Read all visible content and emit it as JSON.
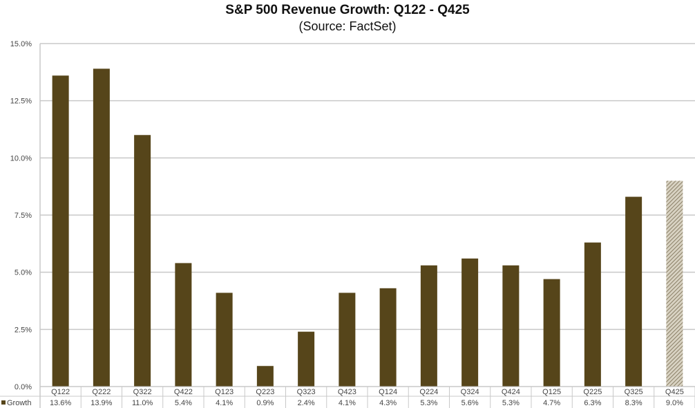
{
  "chart_data": {
    "type": "bar",
    "title": "S&P 500 Revenue Growth: Q122 - Q425",
    "subtitle": "(Source: FactSet)",
    "xlabel": "",
    "ylabel": "",
    "ylim": [
      0,
      15
    ],
    "ytick_step": 2.5,
    "yticks": [
      "0.0%",
      "2.5%",
      "5.0%",
      "7.5%",
      "10.0%",
      "12.5%",
      "15.0%"
    ],
    "grid": true,
    "legend": "bottom-left",
    "categories": [
      "Q122",
      "Q222",
      "Q322",
      "Q422",
      "Q123",
      "Q223",
      "Q323",
      "Q423",
      "Q124",
      "Q224",
      "Q324",
      "Q424",
      "Q125",
      "Q225",
      "Q325",
      "Q425"
    ],
    "series": [
      {
        "name": "Growth",
        "color": "#56451a",
        "estimate_color": "#a89e88",
        "values": [
          13.6,
          13.9,
          11.0,
          5.4,
          4.1,
          0.9,
          2.4,
          4.1,
          4.3,
          5.3,
          5.6,
          5.3,
          4.7,
          6.3,
          8.3,
          9.0
        ],
        "value_labels": [
          "13.6%",
          "13.9%",
          "11.0%",
          "5.4%",
          "4.1%",
          "0.9%",
          "2.4%",
          "4.1%",
          "4.3%",
          "5.3%",
          "5.6%",
          "5.3%",
          "4.7%",
          "6.3%",
          "8.3%",
          "9.0%"
        ],
        "estimated": [
          false,
          false,
          false,
          false,
          false,
          false,
          false,
          false,
          false,
          false,
          false,
          false,
          false,
          false,
          false,
          true
        ]
      }
    ],
    "data_table": true
  }
}
